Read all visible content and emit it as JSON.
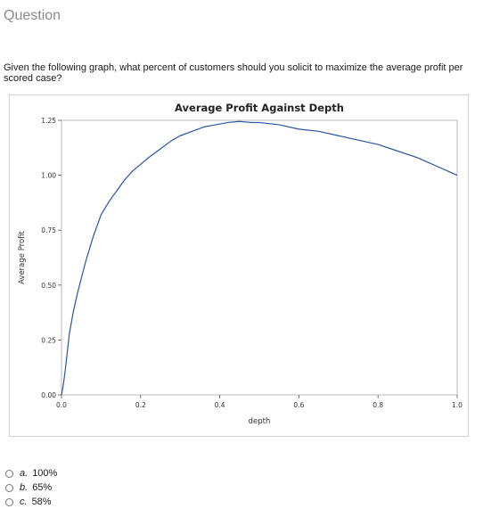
{
  "page": {
    "section_title": "Question",
    "question_text": "Given the following graph, what percent of customers should you solicit to maximize the average profit per scored case?"
  },
  "options": [
    {
      "letter": "a.",
      "text": "100%"
    },
    {
      "letter": "b.",
      "text": "65%"
    },
    {
      "letter": "c.",
      "text": "58%"
    }
  ],
  "colors": {
    "line": "#2a55a0",
    "axis": "#555555",
    "frame": "#aaaaaa"
  },
  "chart_data": {
    "type": "line",
    "title": "Average Profit Against Depth",
    "xlabel": "depth",
    "ylabel": "Average Profit",
    "xlim": [
      0,
      1.0
    ],
    "ylim": [
      0,
      1.25
    ],
    "xticks": [
      "0.0",
      "0.2",
      "0.4",
      "0.6",
      "0.8",
      "1.0"
    ],
    "yticks": [
      "0.00",
      "0.25",
      "0.50",
      "0.75",
      "1.00",
      "1.25"
    ],
    "grid": false,
    "series": [
      {
        "x": [
          0.0,
          0.005,
          0.01,
          0.02,
          0.03,
          0.04,
          0.05,
          0.06,
          0.07,
          0.08,
          0.09,
          0.1,
          0.12,
          0.14,
          0.16,
          0.18,
          0.2,
          0.22,
          0.25,
          0.28,
          0.3,
          0.33,
          0.36,
          0.39,
          0.42,
          0.45,
          0.48,
          0.5,
          0.55,
          0.6,
          0.65,
          0.7,
          0.75,
          0.8,
          0.85,
          0.9,
          0.95,
          1.0
        ],
        "y": [
          0.0,
          0.05,
          0.12,
          0.28,
          0.38,
          0.46,
          0.53,
          0.6,
          0.66,
          0.72,
          0.77,
          0.82,
          0.88,
          0.93,
          0.98,
          1.02,
          1.05,
          1.08,
          1.12,
          1.16,
          1.18,
          1.2,
          1.22,
          1.23,
          1.24,
          1.245,
          1.24,
          1.24,
          1.23,
          1.21,
          1.2,
          1.18,
          1.16,
          1.14,
          1.11,
          1.08,
          1.04,
          1.0
        ]
      }
    ]
  }
}
